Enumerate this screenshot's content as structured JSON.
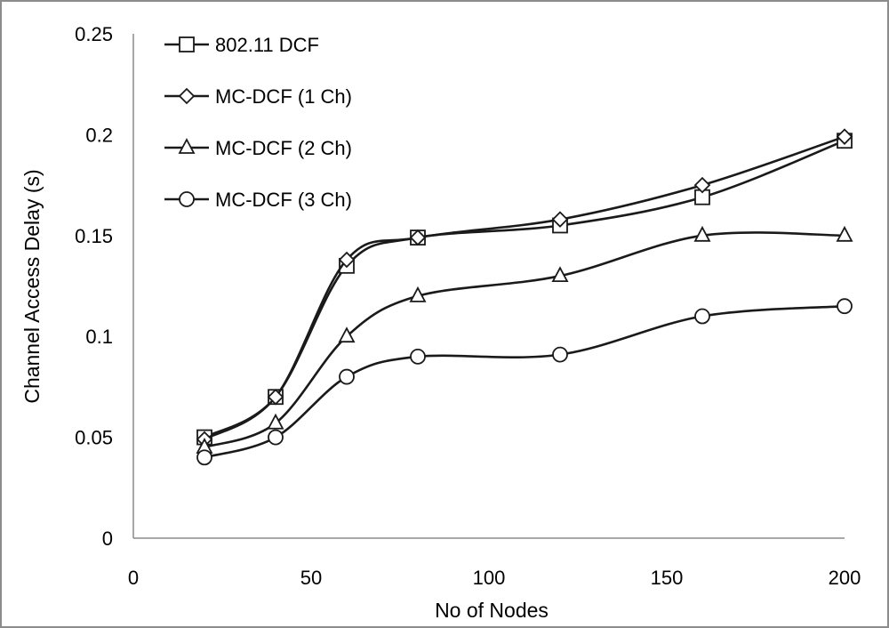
{
  "chart_data": {
    "type": "line",
    "title": "",
    "xlabel": "No of Nodes",
    "ylabel": "Channel Access Delay (s)",
    "xlim": [
      0,
      200
    ],
    "ylim": [
      0,
      0.25
    ],
    "x_ticks": [
      "0",
      "50",
      "100",
      "150",
      "200"
    ],
    "y_ticks": [
      "0",
      "0.05",
      "0.1",
      "0.15",
      "0.2",
      "0.25"
    ],
    "x_tick_values": [
      0,
      50,
      100,
      150,
      200
    ],
    "y_tick_values": [
      0,
      0.05,
      0.1,
      0.15,
      0.2,
      0.25
    ],
    "grid": false,
    "legend_position": "top-left",
    "x": [
      20,
      40,
      60,
      80,
      120,
      160,
      200
    ],
    "series": [
      {
        "name": "802.11 DCF",
        "marker": "square",
        "values": [
          0.05,
          0.07,
          0.135,
          0.149,
          0.155,
          0.169,
          0.197
        ]
      },
      {
        "name": "MC-DCF (1 Ch)",
        "marker": "diamond",
        "values": [
          0.049,
          0.07,
          0.138,
          0.149,
          0.158,
          0.175,
          0.199
        ]
      },
      {
        "name": "MC-DCF (2 Ch)",
        "marker": "triangle",
        "values": [
          0.045,
          0.057,
          0.1,
          0.12,
          0.13,
          0.15,
          0.15
        ]
      },
      {
        "name": "MC-DCF (3 Ch)",
        "marker": "circle",
        "values": [
          0.04,
          0.05,
          0.08,
          0.09,
          0.091,
          0.11,
          0.115
        ]
      }
    ],
    "colors": {
      "line": "#1a1a1a",
      "marker_fill": "#ffffff",
      "axis": "#8c8c8c"
    }
  }
}
